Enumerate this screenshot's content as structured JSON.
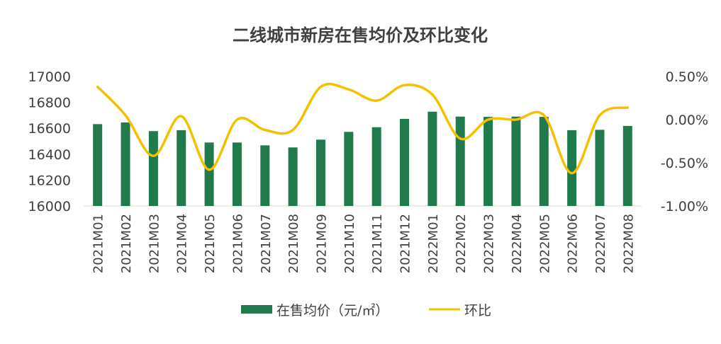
{
  "chart_data": {
    "type": "bar",
    "title": "二线城市新房在售均价及环比变化",
    "categories": [
      "2021M01",
      "2021M02",
      "2021M03",
      "2021M04",
      "2021M05",
      "2021M06",
      "2021M07",
      "2021M08",
      "2021M09",
      "2021M10",
      "2021M11",
      "2021M12",
      "2022M01",
      "2022M02",
      "2022M03",
      "2022M04",
      "2022M05",
      "2022M06",
      "2022M07",
      "2022M08"
    ],
    "series": [
      {
        "name": "在售均价（元/㎡）",
        "type": "bar",
        "axis": "left",
        "color": "#217a4b",
        "values": [
          16632,
          16645,
          16578,
          16585,
          16490,
          16490,
          16468,
          16452,
          16512,
          16572,
          16608,
          16672,
          16728,
          16690,
          16688,
          16690,
          16688,
          16585,
          16588,
          16618
        ]
      },
      {
        "name": "环比",
        "type": "line",
        "axis": "right",
        "color": "#f5c000",
        "unit": "%",
        "values": [
          0.38,
          0.05,
          -0.42,
          0.04,
          -0.58,
          0.0,
          -0.12,
          -0.12,
          0.38,
          0.35,
          0.22,
          0.4,
          0.29,
          -0.22,
          0.0,
          0.0,
          0.05,
          -0.62,
          0.05,
          0.14
        ]
      }
    ],
    "y_left": {
      "min": 16000,
      "max": 17000,
      "ticks": [
        16000,
        16200,
        16400,
        16600,
        16800,
        17000
      ]
    },
    "y_right": {
      "min": -1.0,
      "max": 0.5,
      "ticks": [
        -1.0,
        -0.5,
        0.0,
        0.5
      ],
      "tick_labels": [
        "-1.00%",
        "-0.50%",
        "0.00%",
        "0.50%"
      ]
    },
    "legend_position": "bottom-center",
    "grid": false
  }
}
